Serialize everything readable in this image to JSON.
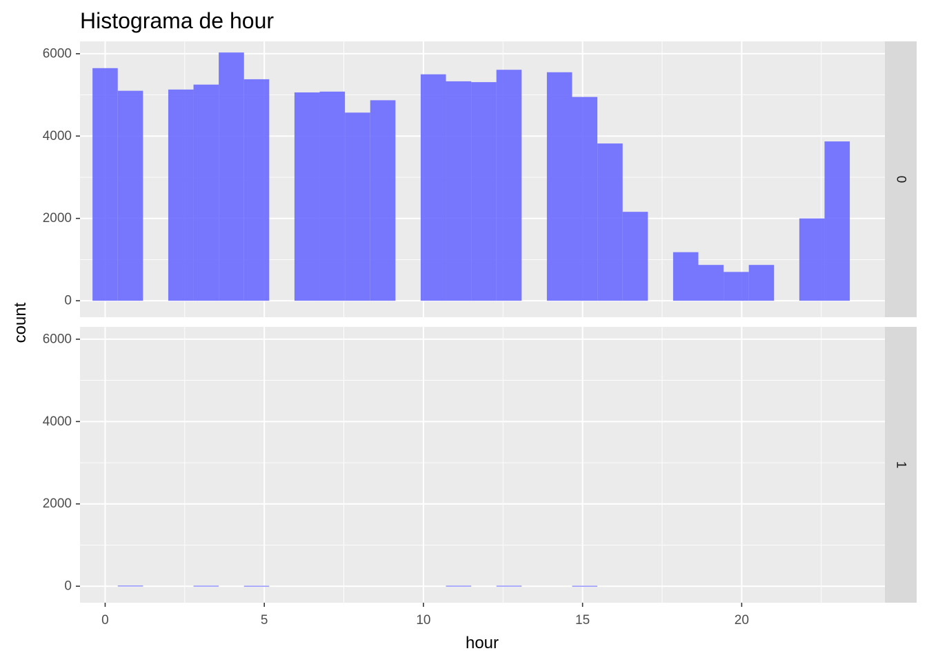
{
  "chart_data": {
    "type": "bar",
    "title": "Histograma de hour",
    "xlabel": "hour",
    "ylabel": "count",
    "xlim": [
      -0.79,
      24.5
    ],
    "ylim": [
      -400,
      6300
    ],
    "x_ticks": [
      "0",
      "5",
      "10",
      "15",
      "20"
    ],
    "y_ticks": [
      "0",
      "2000",
      "4000",
      "6000"
    ],
    "bar_color": "#6666ff",
    "panel_background": "#ebebeb",
    "strip_background": "#d9d9d9",
    "grid": true,
    "bin_width": 0.7931,
    "bin_starts": [
      -0.397,
      0.397,
      1.19,
      1.983,
      2.776,
      3.569,
      4.362,
      5.155,
      5.948,
      6.741,
      7.534,
      8.328,
      9.121,
      9.914,
      10.707,
      11.5,
      12.293,
      13.086,
      13.879,
      14.672,
      15.466,
      16.259,
      17.052,
      17.845,
      18.638,
      19.431,
      20.224,
      21.017,
      21.81,
      22.603
    ],
    "panels": [
      {
        "strip_label": "0",
        "values": [
          5650,
          5100,
          0,
          5130,
          5250,
          6030,
          5380,
          0,
          5060,
          5080,
          4570,
          4870,
          0,
          5500,
          5330,
          5310,
          5610,
          0,
          5550,
          4950,
          3820,
          2160,
          0,
          1180,
          870,
          700,
          870,
          0,
          2000,
          3870
        ]
      },
      {
        "strip_label": "1",
        "values": [
          0,
          15,
          0,
          0,
          12,
          0,
          10,
          0,
          0,
          0,
          0,
          0,
          0,
          0,
          12,
          0,
          12,
          0,
          0,
          10,
          0,
          0,
          0,
          0,
          0,
          0,
          0,
          0,
          0,
          0
        ]
      }
    ]
  }
}
